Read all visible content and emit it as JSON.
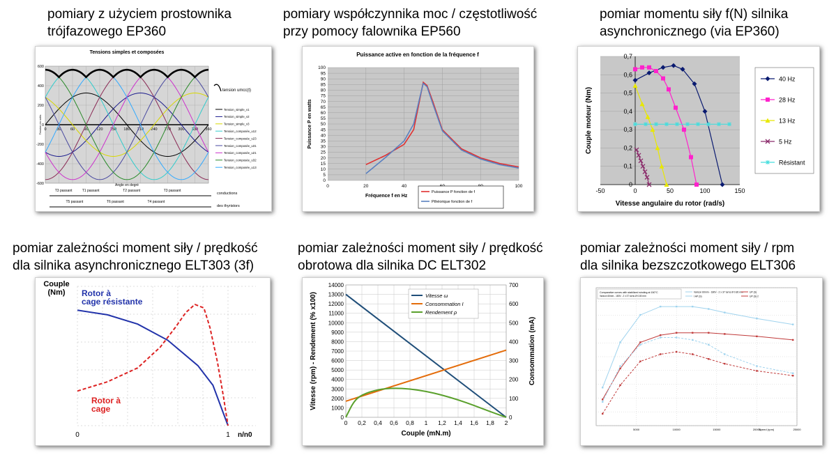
{
  "captions": {
    "c1": "pomiary z użyciem prostownika\ntrójfazowego EP360",
    "c2": "pomiary współczynnika moc / częstotliwość\nprzy pomocy falownika EP560",
    "c3": "pomiar momentu siły f(N) silnika\nasynchronicznego (via EP360)",
    "c4": "pomiar zależności moment siły / prędkość\ndla silnika asynchronicznego ELT303 (3f)",
    "c5": "pomiar zależności moment siły / prędkość\nobrotowa dla silnika DC ELT302",
    "c6": "pomiar zależności moment siły / rpm\ndla silnika bezszczotkowego ELT306"
  },
  "chart_data": [
    {
      "id": "ep360-voltages",
      "type": "line",
      "title": "Tensions simples et composées",
      "xlabel": "Angle en degré",
      "ylabel": "Tension en volts",
      "x_ticks": [
        0,
        30,
        60,
        90,
        120,
        150,
        180,
        210,
        240,
        270,
        300,
        330,
        360
      ],
      "y_ticks": [
        600,
        400,
        200,
        0,
        -200,
        -400,
        -600
      ],
      "xlim": [
        0,
        360
      ],
      "ylim": [
        -600,
        600
      ],
      "annotation": "tension umcc(t)",
      "legend": [
        "Tension_simple_v1",
        "Tension_simple_v2",
        "Tension_simple_v3",
        "Tension_composée_u12",
        "Tension_composée_u23",
        "Tension_composée_u31",
        "Tension_composée_u21",
        "Tension_composée_u32",
        "Tension_composée_u13"
      ],
      "series": [
        {
          "name": "Tension_simple_v1",
          "amplitude": 325,
          "phase": 0,
          "color": "#000000"
        },
        {
          "name": "Tension_simple_v2",
          "amplitude": 325,
          "phase": 120,
          "color": "#1a1a8c"
        },
        {
          "name": "Tension_simple_v3",
          "amplitude": 325,
          "phase": 240,
          "color": "#d8d800"
        },
        {
          "name": "Tension_composée_u12",
          "amplitude": 563,
          "phase": -30,
          "color": "#33cccc"
        },
        {
          "name": "Tension_composée_u23",
          "amplitude": 563,
          "phase": 90,
          "color": "#8a2a55"
        },
        {
          "name": "Tension_composée_u31",
          "amplitude": 563,
          "phase": 210,
          "color": "#4a4aa0"
        },
        {
          "name": "Tension_composée_u21",
          "amplitude": 563,
          "phase": 150,
          "color": "#cc33cc"
        },
        {
          "name": "Tension_composée_u32",
          "amplitude": 563,
          "phase": 270,
          "color": "#2a8a2a"
        },
        {
          "name": "Tension_composée_u13",
          "amplitude": 563,
          "phase": 30,
          "color": "#33aaff"
        }
      ],
      "conduction": {
        "row1": [
          "T3 passant",
          "T1 passant",
          "T2 passant",
          "T3 passant"
        ],
        "row2": [
          "T5 passant",
          "T6 passant",
          "T4 passant"
        ],
        "label1": "conductions",
        "label2": "des thyristors"
      }
    },
    {
      "id": "ep560-power",
      "type": "line",
      "title": "Puissance active en fonction de la fréquence f",
      "xlabel": "Fréquence f en Hz",
      "ylabel": "Puissance P en watts",
      "xlim": [
        0,
        100
      ],
      "ylim": [
        0,
        100
      ],
      "x_ticks": [
        0,
        20,
        40,
        60,
        80,
        100
      ],
      "y_ticks": [
        0,
        5,
        10,
        15,
        20,
        25,
        30,
        35,
        40,
        45,
        50,
        55,
        60,
        65,
        70,
        75,
        80,
        85,
        90,
        95,
        100
      ],
      "series": [
        {
          "name": "Puissance P fonction de f",
          "color": "#e03030",
          "x": [
            20,
            30,
            40,
            45,
            48,
            50,
            52,
            55,
            60,
            70,
            80,
            90,
            100
          ],
          "y": [
            14,
            22,
            32,
            45,
            70,
            87,
            84,
            70,
            45,
            28,
            20,
            15,
            12
          ]
        },
        {
          "name": "Pthéorique fonction de f",
          "color": "#5a80c0",
          "x": [
            20,
            30,
            40,
            45,
            48,
            50,
            52,
            55,
            60,
            70,
            80,
            90,
            100
          ],
          "y": [
            6,
            20,
            35,
            50,
            72,
            86,
            83,
            68,
            44,
            27,
            19,
            14,
            11
          ]
        }
      ]
    },
    {
      "id": "torque-speed-async",
      "type": "line",
      "xlabel": "Vitesse angulaire du rotor (rad/s)",
      "ylabel": "Couple moteur (Nm)",
      "xlim": [
        -50,
        150
      ],
      "ylim": [
        0,
        0.7
      ],
      "x_ticks": [
        -50,
        0,
        50,
        100,
        150
      ],
      "y_ticks": [
        0,
        0.1,
        0.2,
        0.3,
        0.4,
        0.5,
        0.6,
        0.7
      ],
      "y_tick_labels": [
        "0",
        "0,1",
        "0,2",
        "0,3",
        "0,4",
        "0,5",
        "0,6",
        "0,7"
      ],
      "series": [
        {
          "name": "40 Hz",
          "color": "#0a1a70",
          "marker": "diamond",
          "x": [
            0,
            20,
            40,
            55,
            68,
            85,
            100,
            125
          ],
          "y": [
            0.57,
            0.61,
            0.64,
            0.65,
            0.63,
            0.55,
            0.4,
            0
          ]
        },
        {
          "name": "28 Hz",
          "color": "#ff22cc",
          "marker": "square",
          "x": [
            0,
            10,
            20,
            30,
            40,
            48,
            58,
            70,
            80,
            88
          ],
          "y": [
            0.63,
            0.64,
            0.64,
            0.62,
            0.58,
            0.52,
            0.42,
            0.3,
            0.15,
            0
          ]
        },
        {
          "name": "13 Hz",
          "color": "#e8e800",
          "marker": "triangle",
          "x": [
            0,
            10,
            18,
            25,
            32,
            38,
            45
          ],
          "y": [
            0.54,
            0.44,
            0.37,
            0.3,
            0.2,
            0.1,
            0
          ]
        },
        {
          "name": "5 Hz",
          "color": "#8a2a6a",
          "marker": "x",
          "x": [
            2,
            5,
            8,
            11,
            14,
            17,
            20
          ],
          "y": [
            0.19,
            0.16,
            0.13,
            0.1,
            0.07,
            0.04,
            0.0
          ]
        },
        {
          "name": "Résistant",
          "color": "#44dddd",
          "marker": "star",
          "x": [
            0,
            15,
            30,
            45,
            60,
            75,
            90,
            105,
            120,
            135
          ],
          "y": [
            0.33,
            0.33,
            0.33,
            0.33,
            0.33,
            0.33,
            0.33,
            0.33,
            0.33,
            0.33
          ]
        }
      ]
    },
    {
      "id": "elt303-torque",
      "type": "line",
      "ylabel": "Couple\n(Nm)",
      "xlabel": "n/n0",
      "x_ticks": [
        "0",
        "1"
      ],
      "series": [
        {
          "name": "Rotor à cage résistante",
          "color": "#2233aa",
          "style": "solid",
          "x": [
            0,
            0.2,
            0.4,
            0.6,
            0.8,
            0.9,
            1.0
          ],
          "y": [
            1.0,
            0.96,
            0.88,
            0.74,
            0.52,
            0.35,
            0
          ]
        },
        {
          "name": "Rotor à cage",
          "color": "#dd2222",
          "style": "dashed",
          "x": [
            0,
            0.2,
            0.4,
            0.55,
            0.65,
            0.72,
            0.78,
            0.84,
            0.88,
            0.93,
            0.97,
            1.0
          ],
          "y": [
            0.3,
            0.38,
            0.5,
            0.68,
            0.85,
            0.98,
            1.05,
            1.02,
            0.85,
            0.55,
            0.25,
            0
          ]
        }
      ],
      "labels": {
        "blue": "Rotor à\ncage résistante",
        "red": "Rotor à\ncage"
      }
    },
    {
      "id": "elt302-dc",
      "type": "line",
      "xlabel": "Couple (mN.m)",
      "ylabel_left": "Vitesse (rpm)  -  Rendement (% x100)",
      "ylabel_right": "Consommation (mA)",
      "xlim": [
        0,
        2
      ],
      "ylim_left": [
        0,
        14000
      ],
      "ylim_right": [
        0,
        700
      ],
      "x_ticks": [
        0,
        0.2,
        0.4,
        0.6,
        0.8,
        1,
        1.2,
        1.4,
        1.6,
        1.8,
        2
      ],
      "x_tick_labels": [
        "0",
        "0,2",
        "0,4",
        "0,6",
        "0,8",
        "1",
        "1,2",
        "1,4",
        "1,6",
        "1,8",
        "2"
      ],
      "y_ticks_left": [
        0,
        1000,
        2000,
        3000,
        4000,
        5000,
        6000,
        7000,
        8000,
        9000,
        10000,
        11000,
        12000,
        13000,
        14000
      ],
      "y_ticks_right": [
        0,
        100,
        200,
        300,
        400,
        500,
        600,
        700
      ],
      "legend": [
        "Vitesse ω",
        "Consommation I",
        "Rendement ρ"
      ],
      "series": [
        {
          "name": "Vitesse ω",
          "color": "#1f4e79",
          "axis": "left",
          "x": [
            0,
            2
          ],
          "y": [
            13000,
            0
          ]
        },
        {
          "name": "Consommation I",
          "color": "#e46c0a",
          "axis": "left",
          "x": [
            0,
            2
          ],
          "y": [
            1700,
            7100
          ]
        },
        {
          "name": "Rendement ρ",
          "color": "#5aa02c",
          "axis": "left",
          "x": [
            0,
            0.1,
            0.2,
            0.4,
            0.6,
            0.8,
            1.0,
            1.2,
            1.4,
            1.6,
            1.8,
            2.0
          ],
          "y": [
            0,
            1700,
            2400,
            2950,
            3100,
            3000,
            2750,
            2350,
            1850,
            1250,
            600,
            0
          ]
        }
      ]
    },
    {
      "id": "elt306-bldc",
      "type": "line",
      "title": "Comparative curves with stabilized winding at 150°C",
      "xlim": [
        0,
        25000
      ],
      "x_ticks": [
        5000,
        10000,
        15000,
        20000,
        25000
      ],
      "xlabel": "Speed (rpm)",
      "series": [
        {
          "name": "Varicon 60mm - 180V - 2 x 37 turns Ø 0.80 mm",
          "color": "#9fd3ee",
          "style": "solid",
          "x": [
            800,
            3000,
            5500,
            8000,
            10000,
            12000,
            14000,
            16000,
            20000,
            24500
          ],
          "y": [
            0.32,
            0.7,
            0.93,
            1.0,
            1.0,
            1.0,
            0.98,
            0.95,
            0.9,
            0.85
          ]
        },
        {
          "name": "UP (S)",
          "color": "#c03a3a",
          "style": "solid",
          "x": [
            800,
            3000,
            5500,
            8000,
            10000,
            12000,
            14000,
            16000,
            20000,
            24500
          ],
          "y": [
            0.22,
            0.48,
            0.7,
            0.76,
            0.78,
            0.78,
            0.78,
            0.77,
            0.75,
            0.72
          ]
        },
        {
          "name": "I AP (S)",
          "color": "#9fd3ee",
          "style": "dashed",
          "x": [
            800,
            3000,
            5500,
            8000,
            10000,
            12000,
            14000,
            16000,
            20000,
            24500
          ],
          "y": [
            0.2,
            0.5,
            0.68,
            0.74,
            0.74,
            0.72,
            0.68,
            0.6,
            0.5,
            0.44
          ]
        },
        {
          "name": "UP (S) 2",
          "color": "#c03a3a",
          "style": "dashed",
          "x": [
            800,
            3000,
            5500,
            8000,
            10000,
            12000,
            14000,
            16000,
            20000,
            24500
          ],
          "y": [
            0.1,
            0.34,
            0.54,
            0.6,
            0.62,
            0.6,
            0.56,
            0.52,
            0.46,
            0.42
          ]
        }
      ]
    }
  ]
}
